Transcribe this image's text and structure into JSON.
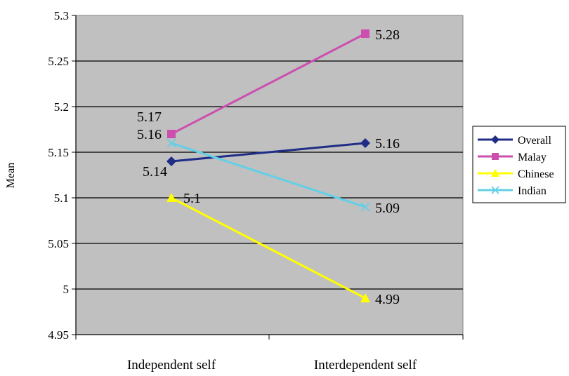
{
  "chart_data": {
    "type": "line",
    "title": "",
    "xlabel": "",
    "ylabel": "Mean",
    "categories": [
      "Independent self",
      "Interdependent self"
    ],
    "ylim": [
      4.95,
      5.3
    ],
    "yticks": [
      4.95,
      5,
      5.05,
      5.1,
      5.15,
      5.2,
      5.25,
      5.3
    ],
    "ytick_labels": [
      "4.95",
      "5",
      "5.05",
      "5.1",
      "5.15",
      "5.2",
      "5.25",
      "5.3"
    ],
    "grid": true,
    "plot_background": "#c0c0c0",
    "legend_position": "right",
    "series": [
      {
        "name": "Overall",
        "values": [
          5.14,
          5.16
        ],
        "labels": [
          "5.14",
          "5.16"
        ],
        "color": "#1f2d86",
        "marker": "diamond"
      },
      {
        "name": "Malay",
        "values": [
          5.17,
          5.28
        ],
        "labels": [
          "5.17",
          "5.28"
        ],
        "color": "#cc4fb0",
        "marker": "square"
      },
      {
        "name": "Chinese",
        "values": [
          5.1,
          4.99
        ],
        "labels": [
          "5.1",
          "4.99"
        ],
        "color": "#ffff00",
        "marker": "triangle"
      },
      {
        "name": "Indian",
        "values": [
          5.16,
          5.09
        ],
        "labels": [
          "5.16",
          "5.09"
        ],
        "color": "#63cfe6",
        "marker": "x"
      }
    ]
  }
}
